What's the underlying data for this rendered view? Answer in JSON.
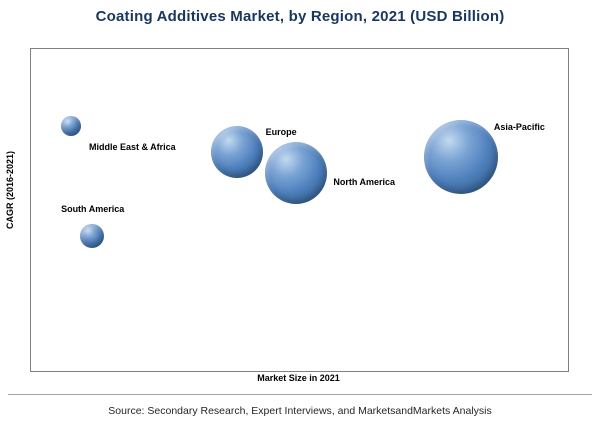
{
  "source": "Source: Secondary Research, Expert Interviews, and MarketsandMarkets Analysis",
  "colors": {
    "title": "#17375E",
    "bubble": "#4f81bd",
    "plot_border": "#808080"
  },
  "chart_data": {
    "type": "scatter",
    "subtype": "bubble",
    "title": "Coating Additives Market, by Region, 2021 (USD Billion)",
    "xlabel": "Market Size in 2021",
    "ylabel": "CAGR (2016-2021)",
    "axis_tick_labels_shown": false,
    "legend": "none",
    "points": [
      {
        "label": "Middle East & Africa",
        "x_pct": 7.4,
        "y_pct": 23.9,
        "r": 10,
        "label_x_pct": 10.8,
        "label_y_pct": 28.9
      },
      {
        "label": "South America",
        "x_pct": 11.3,
        "y_pct": 58.1,
        "r": 12,
        "label_x_pct": 5.6,
        "label_y_pct": 48.1
      },
      {
        "label": "Europe",
        "x_pct": 38.3,
        "y_pct": 32.0,
        "r": 26,
        "label_x_pct": 43.7,
        "label_y_pct": 24.2
      },
      {
        "label": "North America",
        "x_pct": 49.4,
        "y_pct": 38.5,
        "r": 31,
        "label_x_pct": 56.3,
        "label_y_pct": 39.8
      },
      {
        "label": "Asia-Pacific",
        "x_pct": 80.1,
        "y_pct": 33.5,
        "r": 37,
        "label_x_pct": 86.2,
        "label_y_pct": 22.7
      }
    ]
  }
}
